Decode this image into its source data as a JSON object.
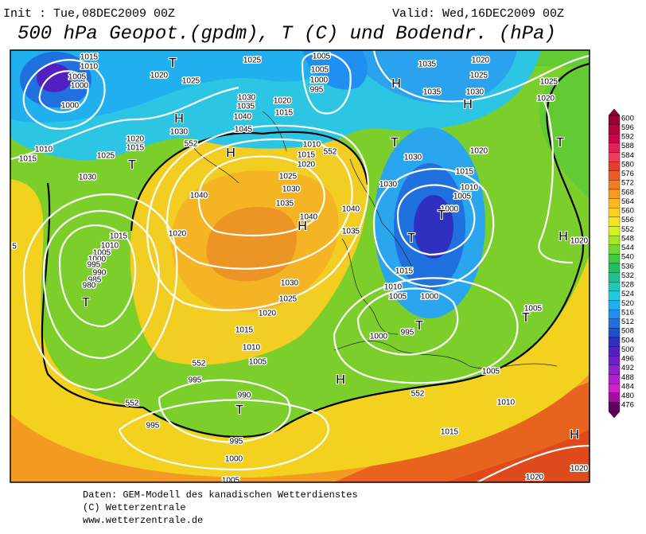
{
  "header": {
    "init": "Init : Tue,08DEC2009 00Z",
    "valid": "Valid: Wed,16DEC2009 00Z",
    "title": "500 hPa Geopot.(gpdm), T (C) und Bodendr. (hPa)"
  },
  "map": {
    "pressure_labels": [
      "1015",
      "1010",
      "1005",
      "1000",
      "1000",
      "1020",
      "1025",
      "1025",
      "1005",
      "1005",
      "1000",
      "995",
      "1035",
      "1020",
      "1025",
      "1030",
      "1035",
      "1025",
      "1020",
      "1030",
      "1035",
      "1040",
      "1045",
      "1020",
      "1015",
      "1030",
      "1020",
      "1015",
      "1010",
      "1015",
      "1025",
      "1030",
      "1010",
      "1015",
      "1020",
      "1025",
      "1030",
      "1035",
      "1040",
      "1040",
      "1040",
      "1035",
      "1030",
      "1020",
      "1030",
      "1015",
      "1010",
      "1005",
      "1000",
      "1015",
      "1010",
      "1005",
      "1000",
      "995",
      "990",
      "985",
      "980",
      "1020",
      "1030",
      "1025",
      "1020",
      "1015",
      "1010",
      "1005",
      "1015",
      "1010",
      "1005",
      "1000",
      "995",
      "1000",
      "1005",
      "1005",
      "995",
      "990",
      "995",
      "995",
      "1000",
      "1005",
      "1010",
      "1015",
      "1020",
      "1020",
      "1020",
      "5"
    ],
    "contour_labels": [
      "552",
      "552",
      "552",
      "552",
      "552"
    ],
    "symbols": [
      "T",
      "H",
      "H",
      "H",
      "T",
      "H",
      "H",
      "T",
      "T",
      "H",
      "T",
      "T",
      "T",
      "T",
      "T",
      "H",
      "T",
      "H"
    ]
  },
  "colorbar": {
    "labels": [
      600,
      596,
      592,
      588,
      584,
      580,
      576,
      572,
      568,
      564,
      560,
      556,
      552,
      548,
      544,
      540,
      536,
      532,
      528,
      524,
      520,
      516,
      512,
      508,
      504,
      500,
      496,
      492,
      488,
      484,
      480,
      476
    ],
    "colors": [
      "#9b0032",
      "#b8003c",
      "#d1004a",
      "#e2205a",
      "#f03c5a",
      "#e63c28",
      "#f05a28",
      "#f57c20",
      "#f89a20",
      "#fbb820",
      "#fcd020",
      "#f6e620",
      "#d6f022",
      "#a6e622",
      "#70d830",
      "#40c840",
      "#20c060",
      "#20c090",
      "#20c8b8",
      "#20c8e0",
      "#20b0f0",
      "#2090f0",
      "#2070e0",
      "#2050d0",
      "#3030c0",
      "#5020c0",
      "#7020c8",
      "#9020d0",
      "#b020d0",
      "#d020c8",
      "#a010a0",
      "#600060"
    ]
  },
  "footer": {
    "source": "Daten: GEM-Modell des kanadischen Wetterdienstes",
    "copyright": "(C) Wetterzentrale",
    "url": "www.wetterzentrale.de"
  }
}
